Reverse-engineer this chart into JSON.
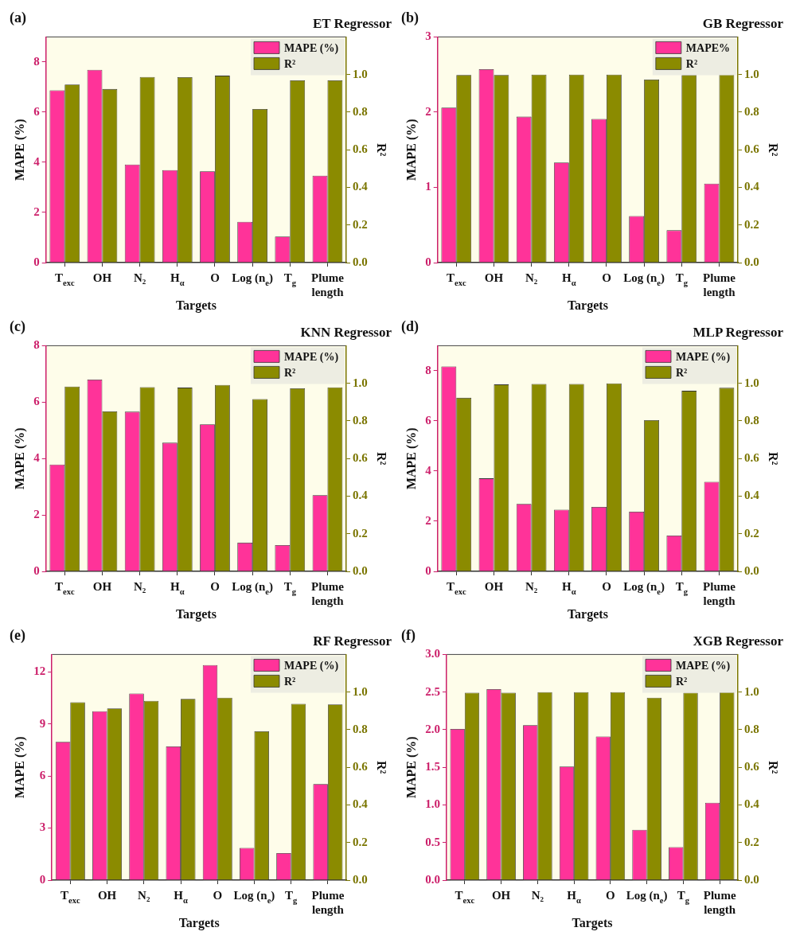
{
  "chart_data": [
    {
      "type": "bar",
      "title": "ET Regressor",
      "annotations": [
        "(a)"
      ],
      "xlabel": "Targets",
      "ylabel": "MAPE (%)",
      "y2label": "R²",
      "legend": "top right",
      "categories": [
        "T$_{exc}$",
        "OH",
        "N₂",
        "H$_{α}$",
        "O",
        "Log (n$_{e}$)",
        "T$_{g}$",
        "Plume length"
      ],
      "ylim": [
        0,
        9
      ],
      "yticks": [
        0,
        2,
        4,
        6,
        8
      ],
      "y2lim": [
        0,
        1.2
      ],
      "y2ticks": [
        {
          "value": 0,
          "label": "0.0"
        },
        {
          "value": 0.2,
          "label": "0.2"
        },
        {
          "value": 0.4,
          "label": "0.4"
        },
        {
          "value": 0.6,
          "label": "0.6"
        },
        {
          "value": 0.8,
          "label": "0.8"
        },
        {
          "value": 1,
          "label": "1.0"
        }
      ],
      "series": [
        {
          "name": "MAPE (%)",
          "color": "#ff3399",
          "values": [
            6.87,
            7.69,
            3.91,
            3.69,
            3.64,
            1.63,
            1.04,
            3.47
          ]
        },
        {
          "name": "R²",
          "color": "#8b8b00",
          "axis": "y2",
          "values": [
            0.947,
            0.923,
            0.987,
            0.986,
            0.994,
            0.817,
            0.969,
            0.969
          ]
        }
      ]
    },
    {
      "type": "bar",
      "title": "GB Regressor",
      "annotations": [
        "(b)"
      ],
      "xlabel": "Targets",
      "ylabel": "MAPE (%)",
      "y2label": "R²",
      "legend": "top right",
      "categories": [
        "T$_{exc}$",
        "OH",
        "N₂",
        "H$_{α}$",
        "O",
        "Log (n$_{e}$)",
        "T$_{g}$",
        "Plume length"
      ],
      "ylim": [
        0,
        3
      ],
      "yticks": [
        0,
        1,
        2,
        3
      ],
      "y2lim": [
        0,
        1.2
      ],
      "y2ticks": [
        {
          "value": 0,
          "label": "0.0"
        },
        {
          "value": 0.2,
          "label": "0.2"
        },
        {
          "value": 0.4,
          "label": "0.4"
        },
        {
          "value": 0.6,
          "label": "0.6"
        },
        {
          "value": 0.8,
          "label": "0.8"
        },
        {
          "value": 1,
          "label": "1.0"
        }
      ],
      "series": [
        {
          "name": "MAPE%",
          "color": "#ff3399",
          "values": [
            2.06,
            2.57,
            1.94,
            1.33,
            1.91,
            0.62,
            0.43,
            1.05
          ]
        },
        {
          "name": "R²",
          "color": "#8b8b00",
          "axis": "y2",
          "values": [
            0.998,
            0.998,
            1.0,
            1.0,
            1.0,
            0.973,
            0.998,
            1.0
          ]
        }
      ]
    },
    {
      "type": "bar",
      "title": "KNN Regressor",
      "annotations": [
        "(c)"
      ],
      "xlabel": "Targets",
      "ylabel": "MAPE (%)",
      "y2label": "R²",
      "legend": "top right",
      "categories": [
        "T$_{exc}$",
        "OH",
        "N₂",
        "H$_{α}$",
        "O",
        "Log (n$_{e}$)",
        "T$_{g}$",
        "Plume length"
      ],
      "ylim": [
        0,
        8
      ],
      "yticks": [
        0,
        2,
        4,
        6,
        8
      ],
      "y2lim": [
        0,
        1.2
      ],
      "y2ticks": [
        {
          "value": 0,
          "label": "0.0"
        },
        {
          "value": 0.2,
          "label": "0.2"
        },
        {
          "value": 0.4,
          "label": "0.4"
        },
        {
          "value": 0.6,
          "label": "0.6"
        },
        {
          "value": 0.8,
          "label": "0.8"
        },
        {
          "value": 1,
          "label": "1.0"
        }
      ],
      "series": [
        {
          "name": "MAPE (%)",
          "color": "#ff3399",
          "values": [
            3.79,
            6.8,
            5.66,
            4.56,
            5.21,
            1.02,
            0.93,
            2.7
          ]
        },
        {
          "name": "R²",
          "color": "#8b8b00",
          "axis": "y2",
          "values": [
            0.983,
            0.851,
            0.98,
            0.977,
            0.991,
            0.916,
            0.973,
            0.979
          ]
        }
      ]
    },
    {
      "type": "bar",
      "title": "MLP Regressor",
      "annotations": [
        "(d)"
      ],
      "xlabel": "Targets",
      "ylabel": "MAPE (%)",
      "y2label": "R²",
      "legend": "top right",
      "categories": [
        "T$_{exc}$",
        "OH",
        "N₂",
        "H$_{α}$",
        "O",
        "Log (n$_{e}$)",
        "T$_{g}$",
        "Plume length"
      ],
      "ylim": [
        0,
        9
      ],
      "yticks": [
        0,
        2,
        4,
        6,
        8
      ],
      "y2lim": [
        0,
        1.2
      ],
      "y2ticks": [
        {
          "value": 0,
          "label": "0.0"
        },
        {
          "value": 0.2,
          "label": "0.2"
        },
        {
          "value": 0.4,
          "label": "0.4"
        },
        {
          "value": 0.6,
          "label": "0.6"
        },
        {
          "value": 0.8,
          "label": "0.8"
        },
        {
          "value": 1,
          "label": "1.0"
        }
      ],
      "series": [
        {
          "name": "MAPE (%)",
          "color": "#ff3399",
          "values": [
            8.17,
            3.71,
            2.69,
            2.46,
            2.57,
            2.38,
            1.43,
            3.57
          ]
        },
        {
          "name": "R²",
          "color": "#8b8b00",
          "axis": "y2",
          "values": [
            0.923,
            0.994,
            0.997,
            0.997,
            1.0,
            0.804,
            0.96,
            0.976
          ]
        }
      ]
    },
    {
      "type": "bar",
      "title": "RF Regressor",
      "annotations": [
        "(e)"
      ],
      "xlabel": "Targets",
      "ylabel": "MAPE (%)",
      "y2label": "R²",
      "legend": "top right",
      "categories": [
        "T$_{exc}$",
        "OH",
        "N₂",
        "H$_{α}$",
        "O",
        "Log (n$_{e}$)",
        "T$_{g}$",
        "Plume length"
      ],
      "ylim": [
        0,
        13
      ],
      "yticks": [
        0,
        3,
        6,
        9,
        12
      ],
      "y2lim": [
        0,
        1.2
      ],
      "y2ticks": [
        {
          "value": 0,
          "label": "0.0"
        },
        {
          "value": 0.2,
          "label": "0.2"
        },
        {
          "value": 0.4,
          "label": "0.4"
        },
        {
          "value": 0.6,
          "label": "0.6"
        },
        {
          "value": 0.8,
          "label": "0.8"
        },
        {
          "value": 1,
          "label": "1.0"
        }
      ],
      "series": [
        {
          "name": "MAPE (%)",
          "color": "#ff3399",
          "values": [
            7.97,
            9.73,
            10.75,
            7.7,
            12.39,
            1.86,
            1.56,
            5.54
          ]
        },
        {
          "name": "R²",
          "color": "#8b8b00",
          "axis": "y2",
          "values": [
            0.946,
            0.913,
            0.953,
            0.964,
            0.97,
            0.791,
            0.937,
            0.934
          ]
        }
      ]
    },
    {
      "type": "bar",
      "title": "XGB Regressor",
      "annotations": [
        "(f)"
      ],
      "xlabel": "Targets",
      "ylabel": "MAPE (%)",
      "y2label": "R²",
      "legend": "top right",
      "categories": [
        "T$_{exc}$",
        "OH",
        "N₂",
        "H$_{α}$",
        "O",
        "Log (n$_{e}$)",
        "T$_{g}$",
        "Plume length"
      ],
      "ylim": [
        0,
        3
      ],
      "yticks": [
        {
          "value": 0,
          "label": "0.0"
        },
        {
          "value": 0.5,
          "label": "0.5"
        },
        {
          "value": 1,
          "label": "1.0"
        },
        {
          "value": 1.5,
          "label": "1.5"
        },
        {
          "value": 2,
          "label": "2.0"
        },
        {
          "value": 2.5,
          "label": "2.5"
        },
        {
          "value": 3,
          "label": "3.0"
        }
      ],
      "y2lim": [
        0,
        1.2
      ],
      "y2ticks": [
        {
          "value": 0,
          "label": "0.0"
        },
        {
          "value": 0.2,
          "label": "0.2"
        },
        {
          "value": 0.4,
          "label": "0.4"
        },
        {
          "value": 0.6,
          "label": "0.6"
        },
        {
          "value": 0.8,
          "label": "0.8"
        },
        {
          "value": 1,
          "label": "1.0"
        }
      ],
      "series": [
        {
          "name": "MAPE (%)",
          "color": "#ff3399",
          "values": [
            2.01,
            2.54,
            2.06,
            1.51,
            1.91,
            0.67,
            0.44,
            1.03
          ]
        },
        {
          "name": "R²",
          "color": "#8b8b00",
          "axis": "y2",
          "values": [
            0.997,
            0.997,
            1.0,
            1.0,
            1.0,
            0.97,
            0.997,
            1.0
          ]
        }
      ]
    }
  ]
}
